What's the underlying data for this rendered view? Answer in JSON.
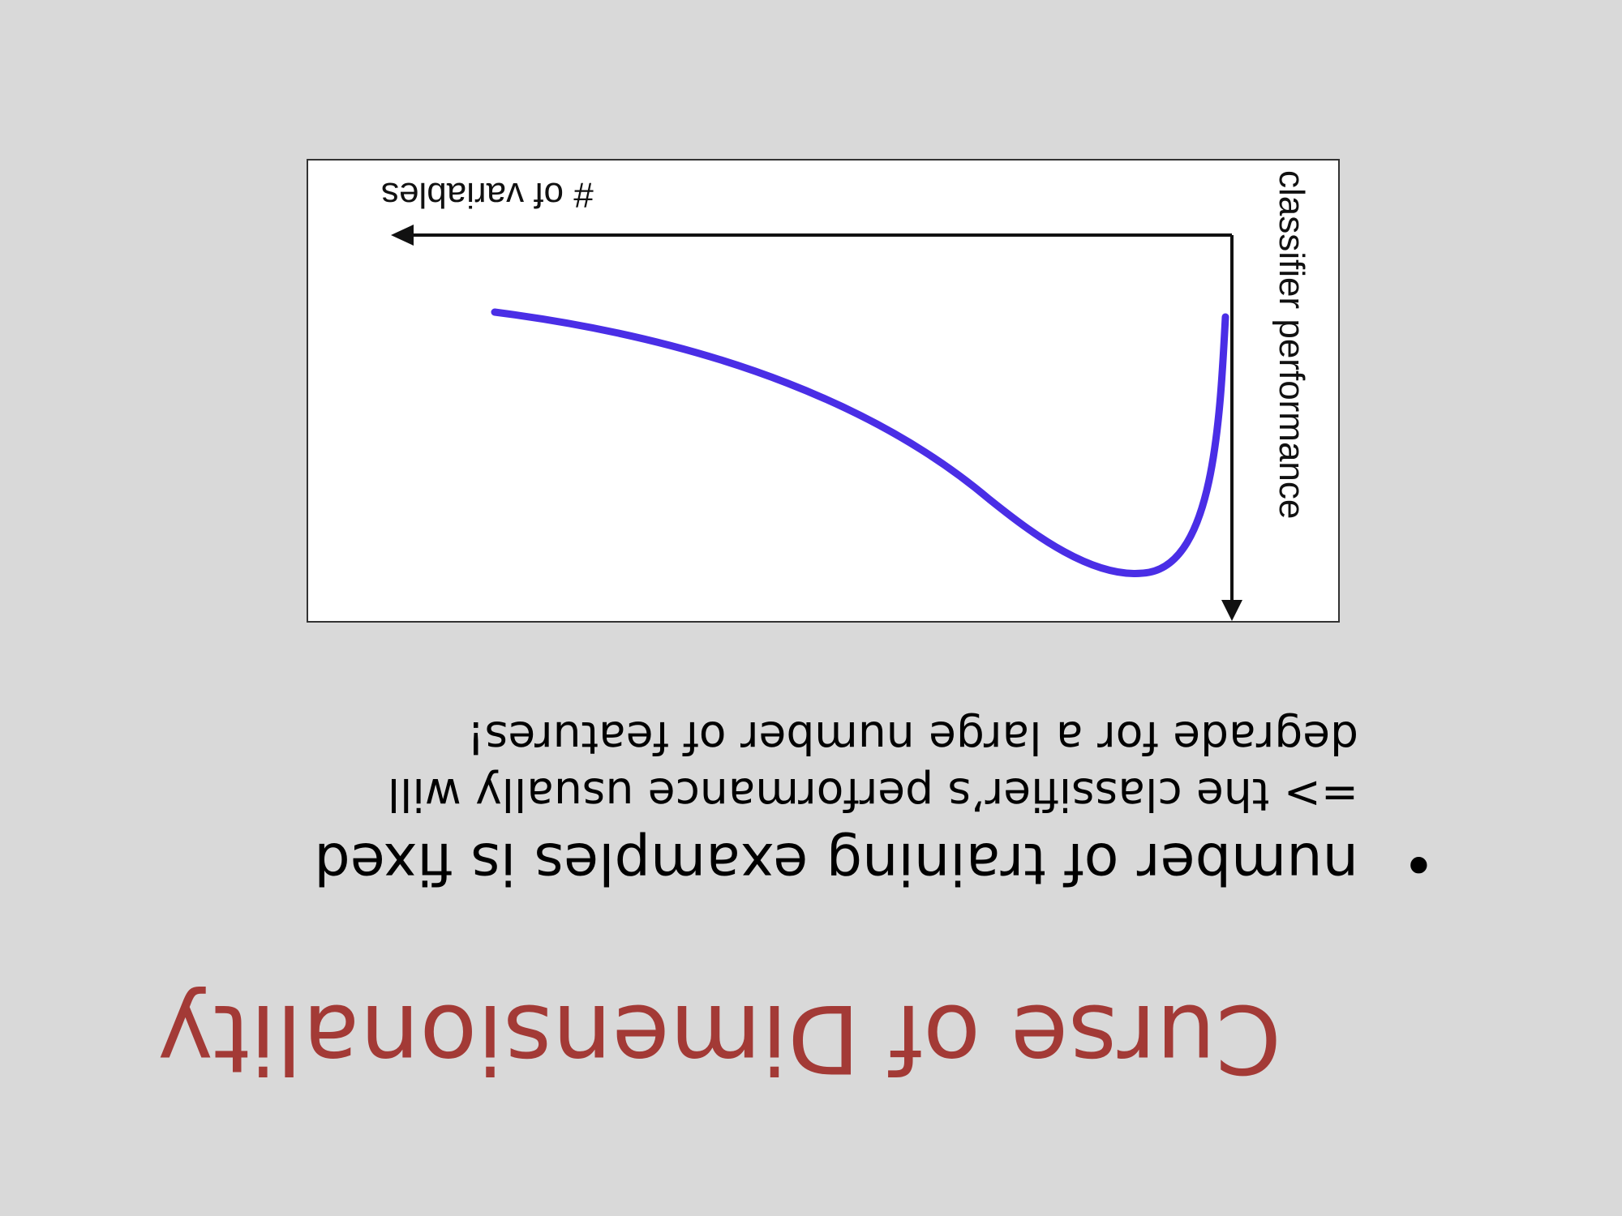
{
  "slide": {
    "title": "Curse of Dimensionality",
    "orientation": "rotated 180 degrees",
    "title_color": "#a33a36",
    "bullet": {
      "symbol": "•",
      "text": "number of training examples is fixed",
      "sub_lines": [
        "=> the classifier’s performance usually will",
        "degrade for a large number of features!"
      ]
    }
  },
  "chart_data": {
    "type": "line",
    "xlabel": "# of variables",
    "ylabel": "classifier performance",
    "grid": false,
    "ticks": false,
    "curve_color": "#4a2ee6",
    "shape": "performance rises sharply to a peak at a small number of variables, then gradually declines as the number of variables grows"
  }
}
